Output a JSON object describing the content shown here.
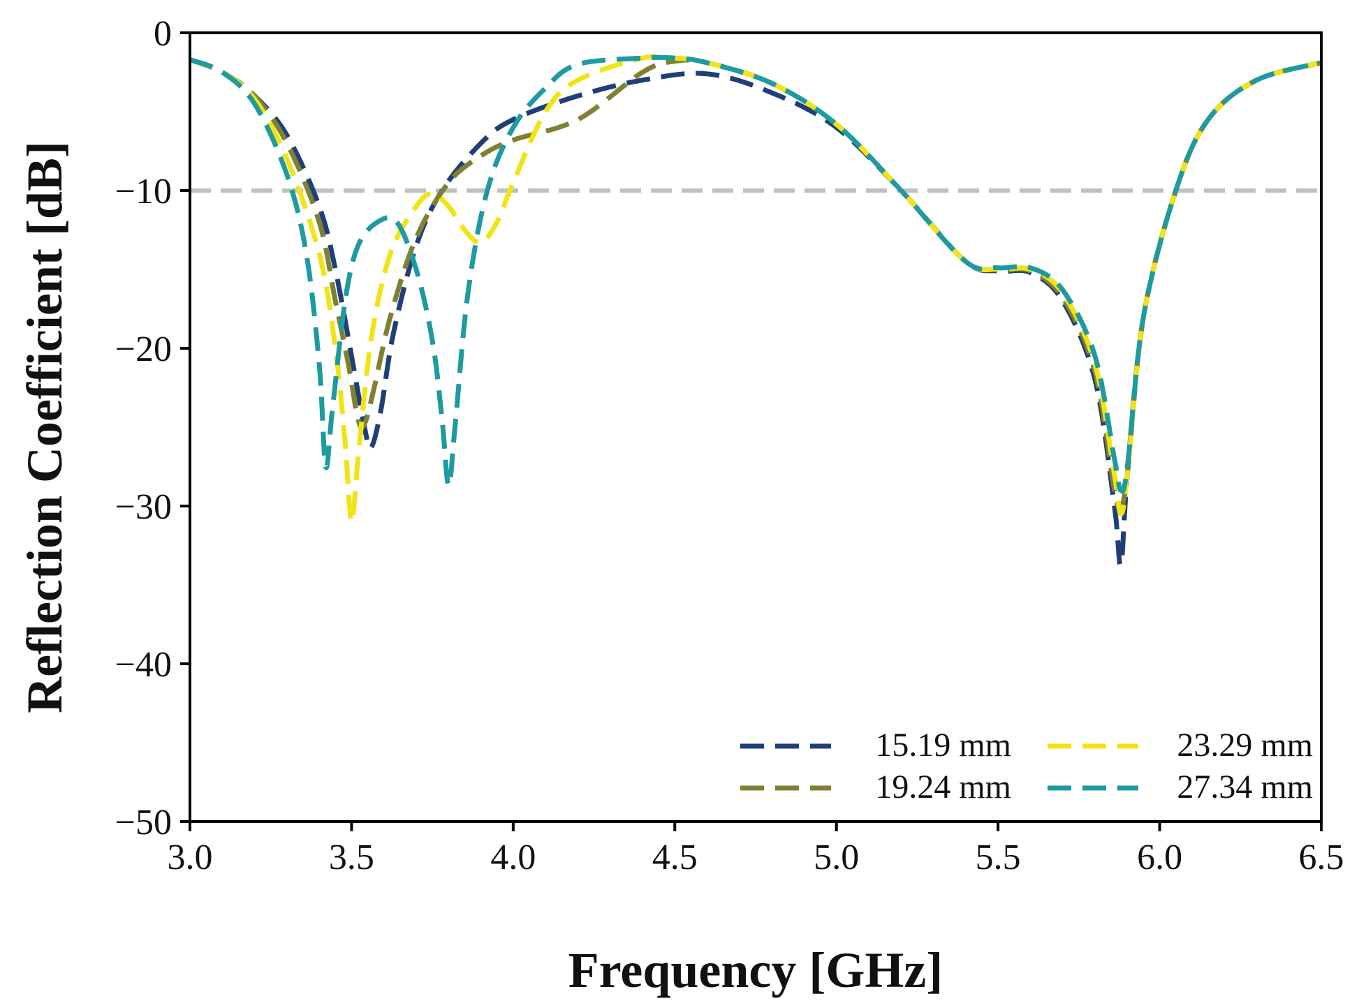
{
  "chart_data": {
    "type": "line",
    "title": "",
    "xlabel": "Frequency [GHz]",
    "ylabel": "Reflection Coefficient [dB]",
    "xlim": [
      3.0,
      6.5
    ],
    "ylim": [
      -50,
      0
    ],
    "xticks": [
      "3.0",
      "3.5",
      "4.0",
      "4.5",
      "5.0",
      "5.5",
      "6.0",
      "6.5"
    ],
    "yticks": [
      "0",
      "−10",
      "−20",
      "−30",
      "−40",
      "−50"
    ],
    "x_tick_values": [
      3.0,
      3.5,
      4.0,
      4.5,
      5.0,
      5.5,
      6.0,
      6.5
    ],
    "y_tick_values": [
      0,
      -10,
      -20,
      -30,
      -40,
      -50
    ],
    "grid": false,
    "legend_position": "bottom-right",
    "reference_line": {
      "y": -10,
      "color": "#bfbfbf"
    },
    "series": [
      {
        "name": "15.19 mm",
        "color": "#1f3f78",
        "points": [
          [
            3.0,
            -1.7
          ],
          [
            3.1,
            -2.5
          ],
          [
            3.2,
            -4.0
          ],
          [
            3.3,
            -6.5
          ],
          [
            3.4,
            -11.0
          ],
          [
            3.45,
            -15.0
          ],
          [
            3.5,
            -20.5
          ],
          [
            3.54,
            -25.0
          ],
          [
            3.56,
            -26.3
          ],
          [
            3.59,
            -24.0
          ],
          [
            3.63,
            -19.0
          ],
          [
            3.7,
            -13.5
          ],
          [
            3.78,
            -10.0
          ],
          [
            3.9,
            -7.0
          ],
          [
            4.0,
            -5.5
          ],
          [
            4.2,
            -4.0
          ],
          [
            4.4,
            -3.0
          ],
          [
            4.6,
            -2.6
          ],
          [
            4.8,
            -3.8
          ],
          [
            5.0,
            -6.0
          ],
          [
            5.2,
            -10.0
          ],
          [
            5.4,
            -14.5
          ],
          [
            5.5,
            -15.1
          ],
          [
            5.6,
            -15.2
          ],
          [
            5.7,
            -17.0
          ],
          [
            5.8,
            -22.0
          ],
          [
            5.86,
            -30.0
          ],
          [
            5.88,
            -33.7
          ],
          [
            5.9,
            -28.0
          ],
          [
            5.95,
            -18.0
          ],
          [
            6.05,
            -10.0
          ],
          [
            6.15,
            -5.5
          ],
          [
            6.3,
            -3.0
          ],
          [
            6.5,
            -1.9
          ]
        ]
      },
      {
        "name": "19.24 mm",
        "color": "#7f8033",
        "points": [
          [
            3.0,
            -1.7
          ],
          [
            3.1,
            -2.5
          ],
          [
            3.2,
            -4.0
          ],
          [
            3.3,
            -7.0
          ],
          [
            3.4,
            -12.0
          ],
          [
            3.45,
            -17.0
          ],
          [
            3.49,
            -21.0
          ],
          [
            3.52,
            -24.5
          ],
          [
            3.54,
            -24.8
          ],
          [
            3.57,
            -22.5
          ],
          [
            3.62,
            -18.0
          ],
          [
            3.7,
            -13.0
          ],
          [
            3.8,
            -9.5
          ],
          [
            3.9,
            -7.8
          ],
          [
            4.0,
            -6.8
          ],
          [
            4.2,
            -5.5
          ],
          [
            4.4,
            -2.5
          ],
          [
            4.5,
            -1.8
          ],
          [
            4.6,
            -1.9
          ],
          [
            4.8,
            -3.2
          ],
          [
            5.0,
            -5.8
          ],
          [
            5.2,
            -10.0
          ],
          [
            5.4,
            -14.5
          ],
          [
            5.5,
            -15.0
          ],
          [
            5.6,
            -15.1
          ],
          [
            5.7,
            -16.8
          ],
          [
            5.8,
            -21.5
          ],
          [
            5.86,
            -29.0
          ],
          [
            5.88,
            -30.0
          ],
          [
            5.9,
            -28.0
          ],
          [
            5.95,
            -18.0
          ],
          [
            6.05,
            -10.0
          ],
          [
            6.15,
            -5.5
          ],
          [
            6.3,
            -3.0
          ],
          [
            6.5,
            -1.9
          ]
        ]
      },
      {
        "name": "23.29 mm",
        "color": "#f0e416",
        "points": [
          [
            3.0,
            -1.7
          ],
          [
            3.1,
            -2.5
          ],
          [
            3.2,
            -4.2
          ],
          [
            3.3,
            -8.0
          ],
          [
            3.4,
            -14.0
          ],
          [
            3.45,
            -20.0
          ],
          [
            3.48,
            -26.0
          ],
          [
            3.5,
            -31.0
          ],
          [
            3.52,
            -27.0
          ],
          [
            3.56,
            -19.5
          ],
          [
            3.62,
            -14.0
          ],
          [
            3.7,
            -11.0
          ],
          [
            3.75,
            -10.2
          ],
          [
            3.8,
            -11.0
          ],
          [
            3.85,
            -12.5
          ],
          [
            3.9,
            -13.3
          ],
          [
            3.95,
            -12.0
          ],
          [
            4.0,
            -9.5
          ],
          [
            4.1,
            -5.0
          ],
          [
            4.2,
            -3.0
          ],
          [
            4.4,
            -1.6
          ],
          [
            4.5,
            -1.6
          ],
          [
            4.6,
            -1.9
          ],
          [
            4.8,
            -3.2
          ],
          [
            5.0,
            -5.8
          ],
          [
            5.2,
            -10.0
          ],
          [
            5.4,
            -14.5
          ],
          [
            5.5,
            -15.0
          ],
          [
            5.6,
            -15.0
          ],
          [
            5.7,
            -16.5
          ],
          [
            5.8,
            -21.0
          ],
          [
            5.86,
            -28.0
          ],
          [
            5.88,
            -30.5
          ],
          [
            5.9,
            -28.0
          ],
          [
            5.95,
            -18.0
          ],
          [
            6.05,
            -10.0
          ],
          [
            6.15,
            -5.5
          ],
          [
            6.3,
            -3.0
          ],
          [
            6.5,
            -1.9
          ]
        ]
      },
      {
        "name": "27.34 mm",
        "color": "#1e9aa1",
        "points": [
          [
            3.0,
            -1.7
          ],
          [
            3.1,
            -2.5
          ],
          [
            3.2,
            -4.5
          ],
          [
            3.3,
            -9.0
          ],
          [
            3.36,
            -14.0
          ],
          [
            3.4,
            -21.0
          ],
          [
            3.42,
            -27.5
          ],
          [
            3.44,
            -24.0
          ],
          [
            3.48,
            -17.0
          ],
          [
            3.52,
            -13.5
          ],
          [
            3.58,
            -12.0
          ],
          [
            3.64,
            -12.0
          ],
          [
            3.7,
            -15.0
          ],
          [
            3.75,
            -19.5
          ],
          [
            3.78,
            -24.5
          ],
          [
            3.8,
            -28.7
          ],
          [
            3.82,
            -25.0
          ],
          [
            3.86,
            -16.5
          ],
          [
            3.92,
            -10.0
          ],
          [
            4.0,
            -6.0
          ],
          [
            4.1,
            -3.5
          ],
          [
            4.2,
            -2.0
          ],
          [
            4.4,
            -1.6
          ],
          [
            4.5,
            -1.6
          ],
          [
            4.6,
            -1.9
          ],
          [
            4.8,
            -3.2
          ],
          [
            5.0,
            -5.8
          ],
          [
            5.2,
            -10.0
          ],
          [
            5.4,
            -14.5
          ],
          [
            5.5,
            -14.9
          ],
          [
            5.6,
            -14.9
          ],
          [
            5.7,
            -16.3
          ],
          [
            5.8,
            -20.5
          ],
          [
            5.86,
            -27.0
          ],
          [
            5.88,
            -29.0
          ],
          [
            5.9,
            -27.5
          ],
          [
            5.95,
            -18.0
          ],
          [
            6.05,
            -10.0
          ],
          [
            6.15,
            -5.5
          ],
          [
            6.3,
            -3.0
          ],
          [
            6.5,
            -1.9
          ]
        ]
      }
    ]
  }
}
